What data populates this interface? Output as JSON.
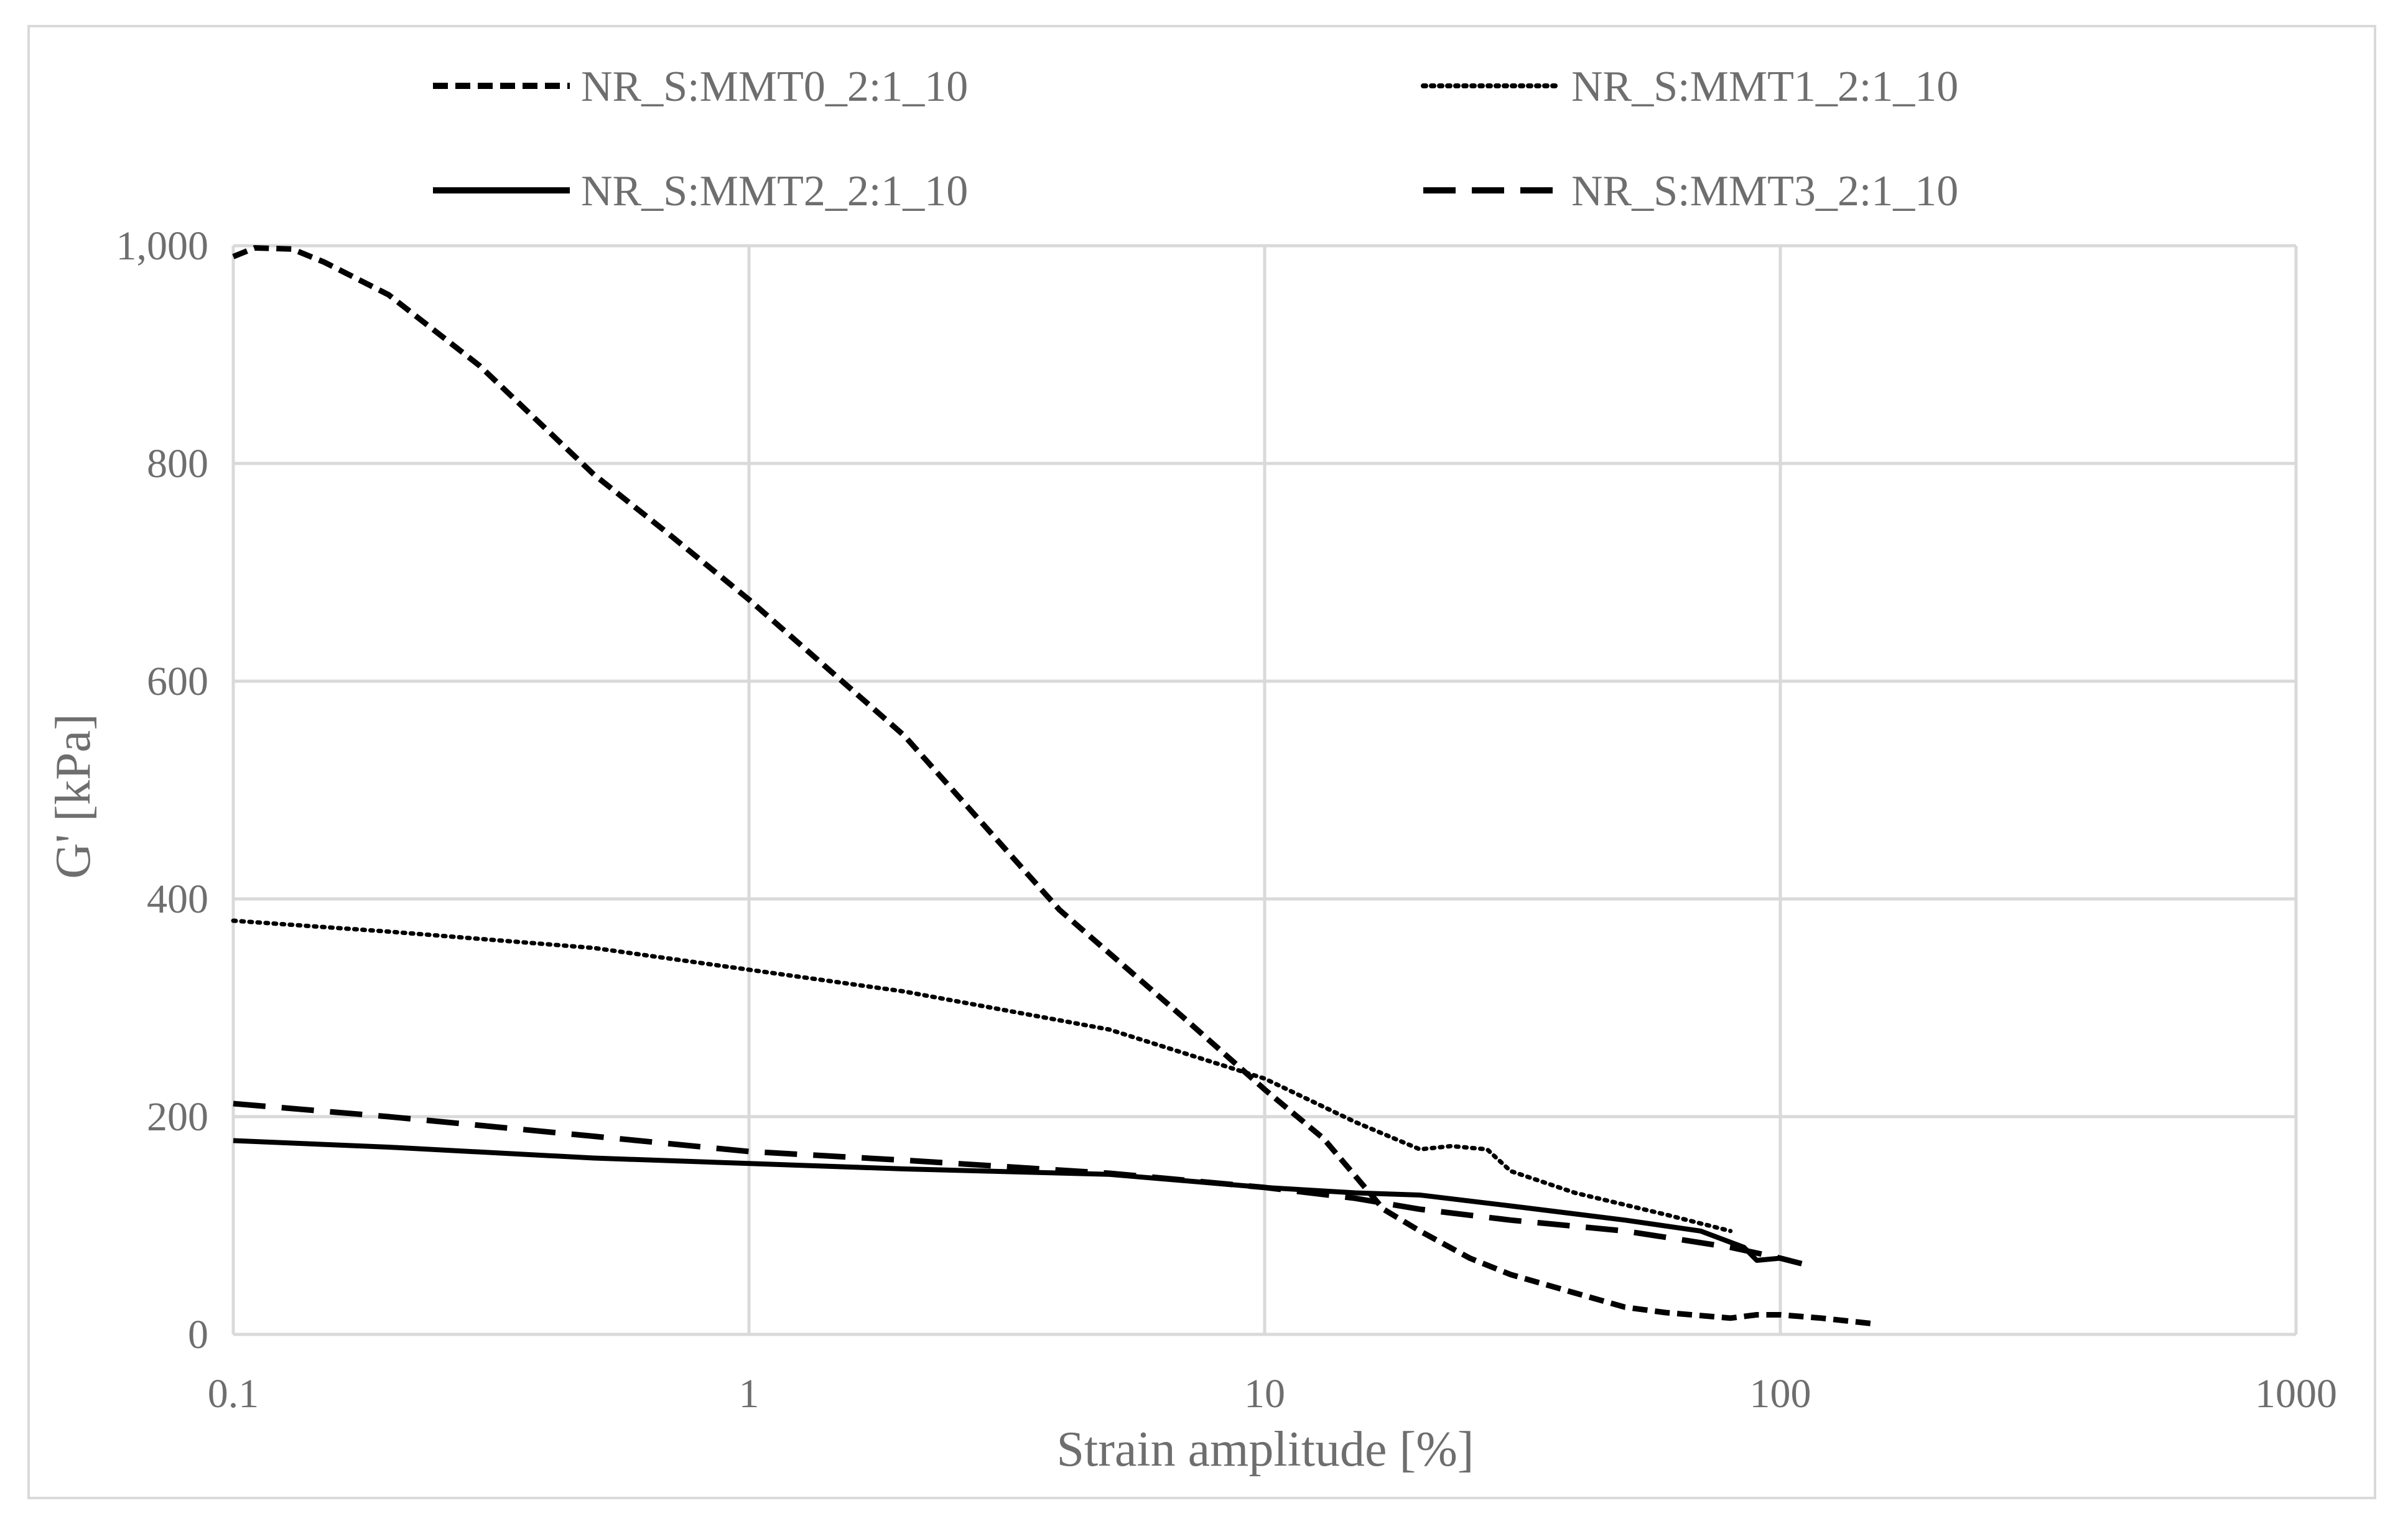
{
  "chart_data": {
    "type": "line",
    "title": "",
    "xlabel": "Strain amplitude [%]",
    "ylabel": "G' [kPa]",
    "xscale": "log",
    "xlim": [
      0.1,
      1000
    ],
    "ylim": [
      0,
      1000
    ],
    "x_ticks": [
      0.1,
      1,
      10,
      100,
      1000
    ],
    "x_tick_labels": [
      "0.1",
      "1",
      "10",
      "100",
      "1000"
    ],
    "y_ticks": [
      0,
      200,
      400,
      600,
      800,
      1000
    ],
    "y_tick_labels": [
      "0",
      "200",
      "400",
      "600",
      "800",
      "1,000"
    ],
    "grid": true,
    "legend_position": "top",
    "series": [
      {
        "name": "NR_S:MMT0_2:1_10",
        "style": "short-dash",
        "color": "#000000",
        "points": [
          [
            0.1,
            990
          ],
          [
            0.11,
            998
          ],
          [
            0.13,
            997
          ],
          [
            0.15,
            985
          ],
          [
            0.2,
            955
          ],
          [
            0.3,
            890
          ],
          [
            0.5,
            790
          ],
          [
            0.7,
            735
          ],
          [
            1,
            675
          ],
          [
            2,
            550
          ],
          [
            4,
            390
          ],
          [
            7,
            290
          ],
          [
            10,
            225
          ],
          [
            13,
            180
          ],
          [
            17,
            115
          ],
          [
            20,
            95
          ],
          [
            25,
            70
          ],
          [
            30,
            55
          ],
          [
            40,
            38
          ],
          [
            50,
            25
          ],
          [
            60,
            20
          ],
          [
            80,
            15
          ],
          [
            90,
            18
          ],
          [
            100,
            18
          ],
          [
            120,
            15
          ],
          [
            150,
            10
          ]
        ]
      },
      {
        "name": "NR_S:MMT1_2:1_10",
        "style": "dotted",
        "color": "#000000",
        "points": [
          [
            0.1,
            380
          ],
          [
            0.2,
            370
          ],
          [
            0.5,
            355
          ],
          [
            1,
            335
          ],
          [
            2,
            315
          ],
          [
            5,
            280
          ],
          [
            10,
            235
          ],
          [
            15,
            195
          ],
          [
            20,
            170
          ],
          [
            23,
            173
          ],
          [
            27,
            170
          ],
          [
            30,
            150
          ],
          [
            40,
            130
          ],
          [
            60,
            110
          ],
          [
            80,
            95
          ]
        ]
      },
      {
        "name": "NR_S:MMT2_2:1_10",
        "style": "solid",
        "color": "#000000",
        "points": [
          [
            0.1,
            178
          ],
          [
            0.2,
            172
          ],
          [
            0.5,
            162
          ],
          [
            1,
            157
          ],
          [
            2,
            152
          ],
          [
            5,
            147
          ],
          [
            10,
            135
          ],
          [
            15,
            130
          ],
          [
            20,
            128
          ],
          [
            30,
            118
          ],
          [
            50,
            105
          ],
          [
            70,
            95
          ],
          [
            85,
            80
          ],
          [
            90,
            68
          ],
          [
            100,
            70
          ],
          [
            110,
            65
          ]
        ]
      },
      {
        "name": "NR_S:MMT3_2:1_10",
        "style": "long-dash",
        "color": "#000000",
        "points": [
          [
            0.1,
            212
          ],
          [
            0.2,
            200
          ],
          [
            0.5,
            182
          ],
          [
            1,
            168
          ],
          [
            2,
            160
          ],
          [
            5,
            148
          ],
          [
            10,
            135
          ],
          [
            15,
            125
          ],
          [
            20,
            115
          ],
          [
            30,
            105
          ],
          [
            50,
            95
          ],
          [
            80,
            80
          ],
          [
            100,
            70
          ],
          [
            110,
            65
          ]
        ]
      }
    ]
  }
}
